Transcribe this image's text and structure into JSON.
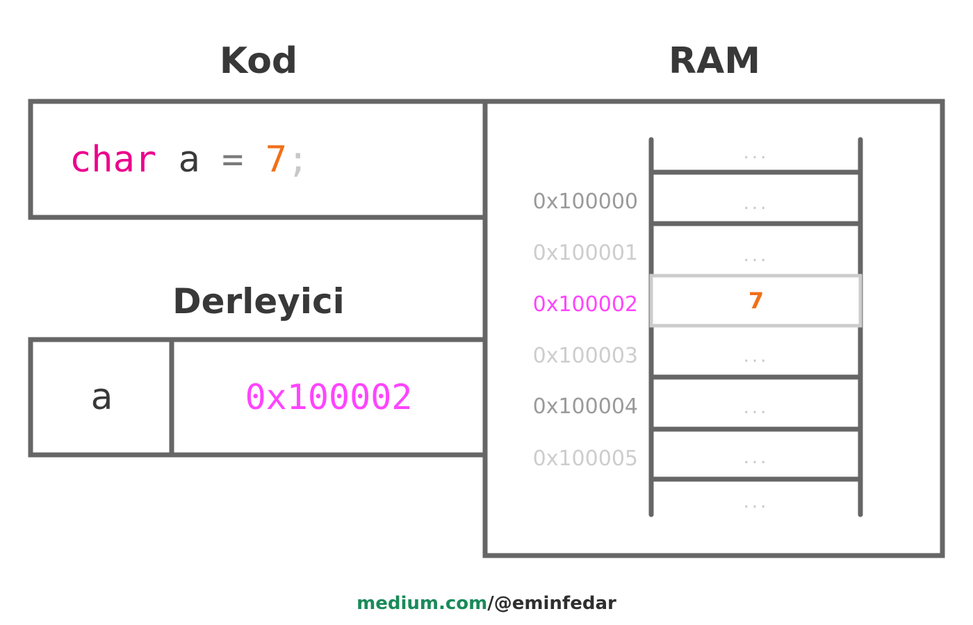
{
  "titles": {
    "code": "Kod",
    "ram": "RAM",
    "compiler": "Derleyici"
  },
  "code": {
    "keyword": "char",
    "name": "a",
    "operator": "=",
    "value": "7",
    "terminator": ";"
  },
  "symbol_table": {
    "name": "a",
    "address": "0x100002"
  },
  "ram": {
    "addresses": [
      "0x100000",
      "0x100001",
      "0x100002",
      "0x100003",
      "0x100004",
      "0x100005"
    ],
    "cells": [
      "...",
      "...",
      "...",
      "7",
      "...",
      "...",
      "...",
      "..."
    ],
    "highlighted_address": "0x100002"
  },
  "footer": {
    "domain": "medium.com",
    "handle": "/@eminfedar"
  },
  "colors": {
    "keyword": "#ec008c",
    "number": "#f07018",
    "address_highlight": "#ff44ff",
    "frame": "#666666",
    "footer_domain": "#1a8a5a"
  }
}
